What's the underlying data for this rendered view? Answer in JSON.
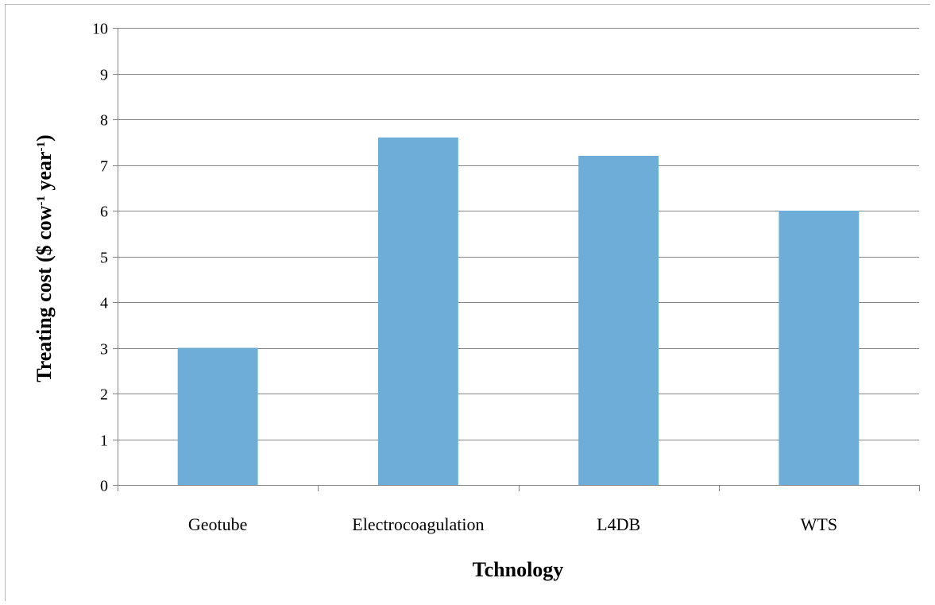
{
  "chart_data": {
    "type": "bar",
    "title": "",
    "xlabel": "Tchnology",
    "ylabel": {
      "parts": [
        {
          "text": "Treating cost ($ cow",
          "sup": false
        },
        {
          "text": "-1",
          "sup": true
        },
        {
          "text": " year",
          "sup": false
        },
        {
          "text": "-1",
          "sup": true
        },
        {
          "text": ")",
          "sup": false
        }
      ]
    },
    "categories": [
      "Geotube",
      "Electrocoagulation",
      "L4DB",
      "WTS"
    ],
    "values": [
      3.0,
      7.6,
      7.2,
      6.0
    ],
    "ylim": [
      0,
      10
    ],
    "yticks": [
      0,
      1,
      2,
      3,
      4,
      5,
      6,
      7,
      8,
      9,
      10
    ],
    "grid": true,
    "legend": "none",
    "colors": {
      "bar": "#6fadd9",
      "grid": "#868686",
      "axis": "#868686"
    }
  }
}
